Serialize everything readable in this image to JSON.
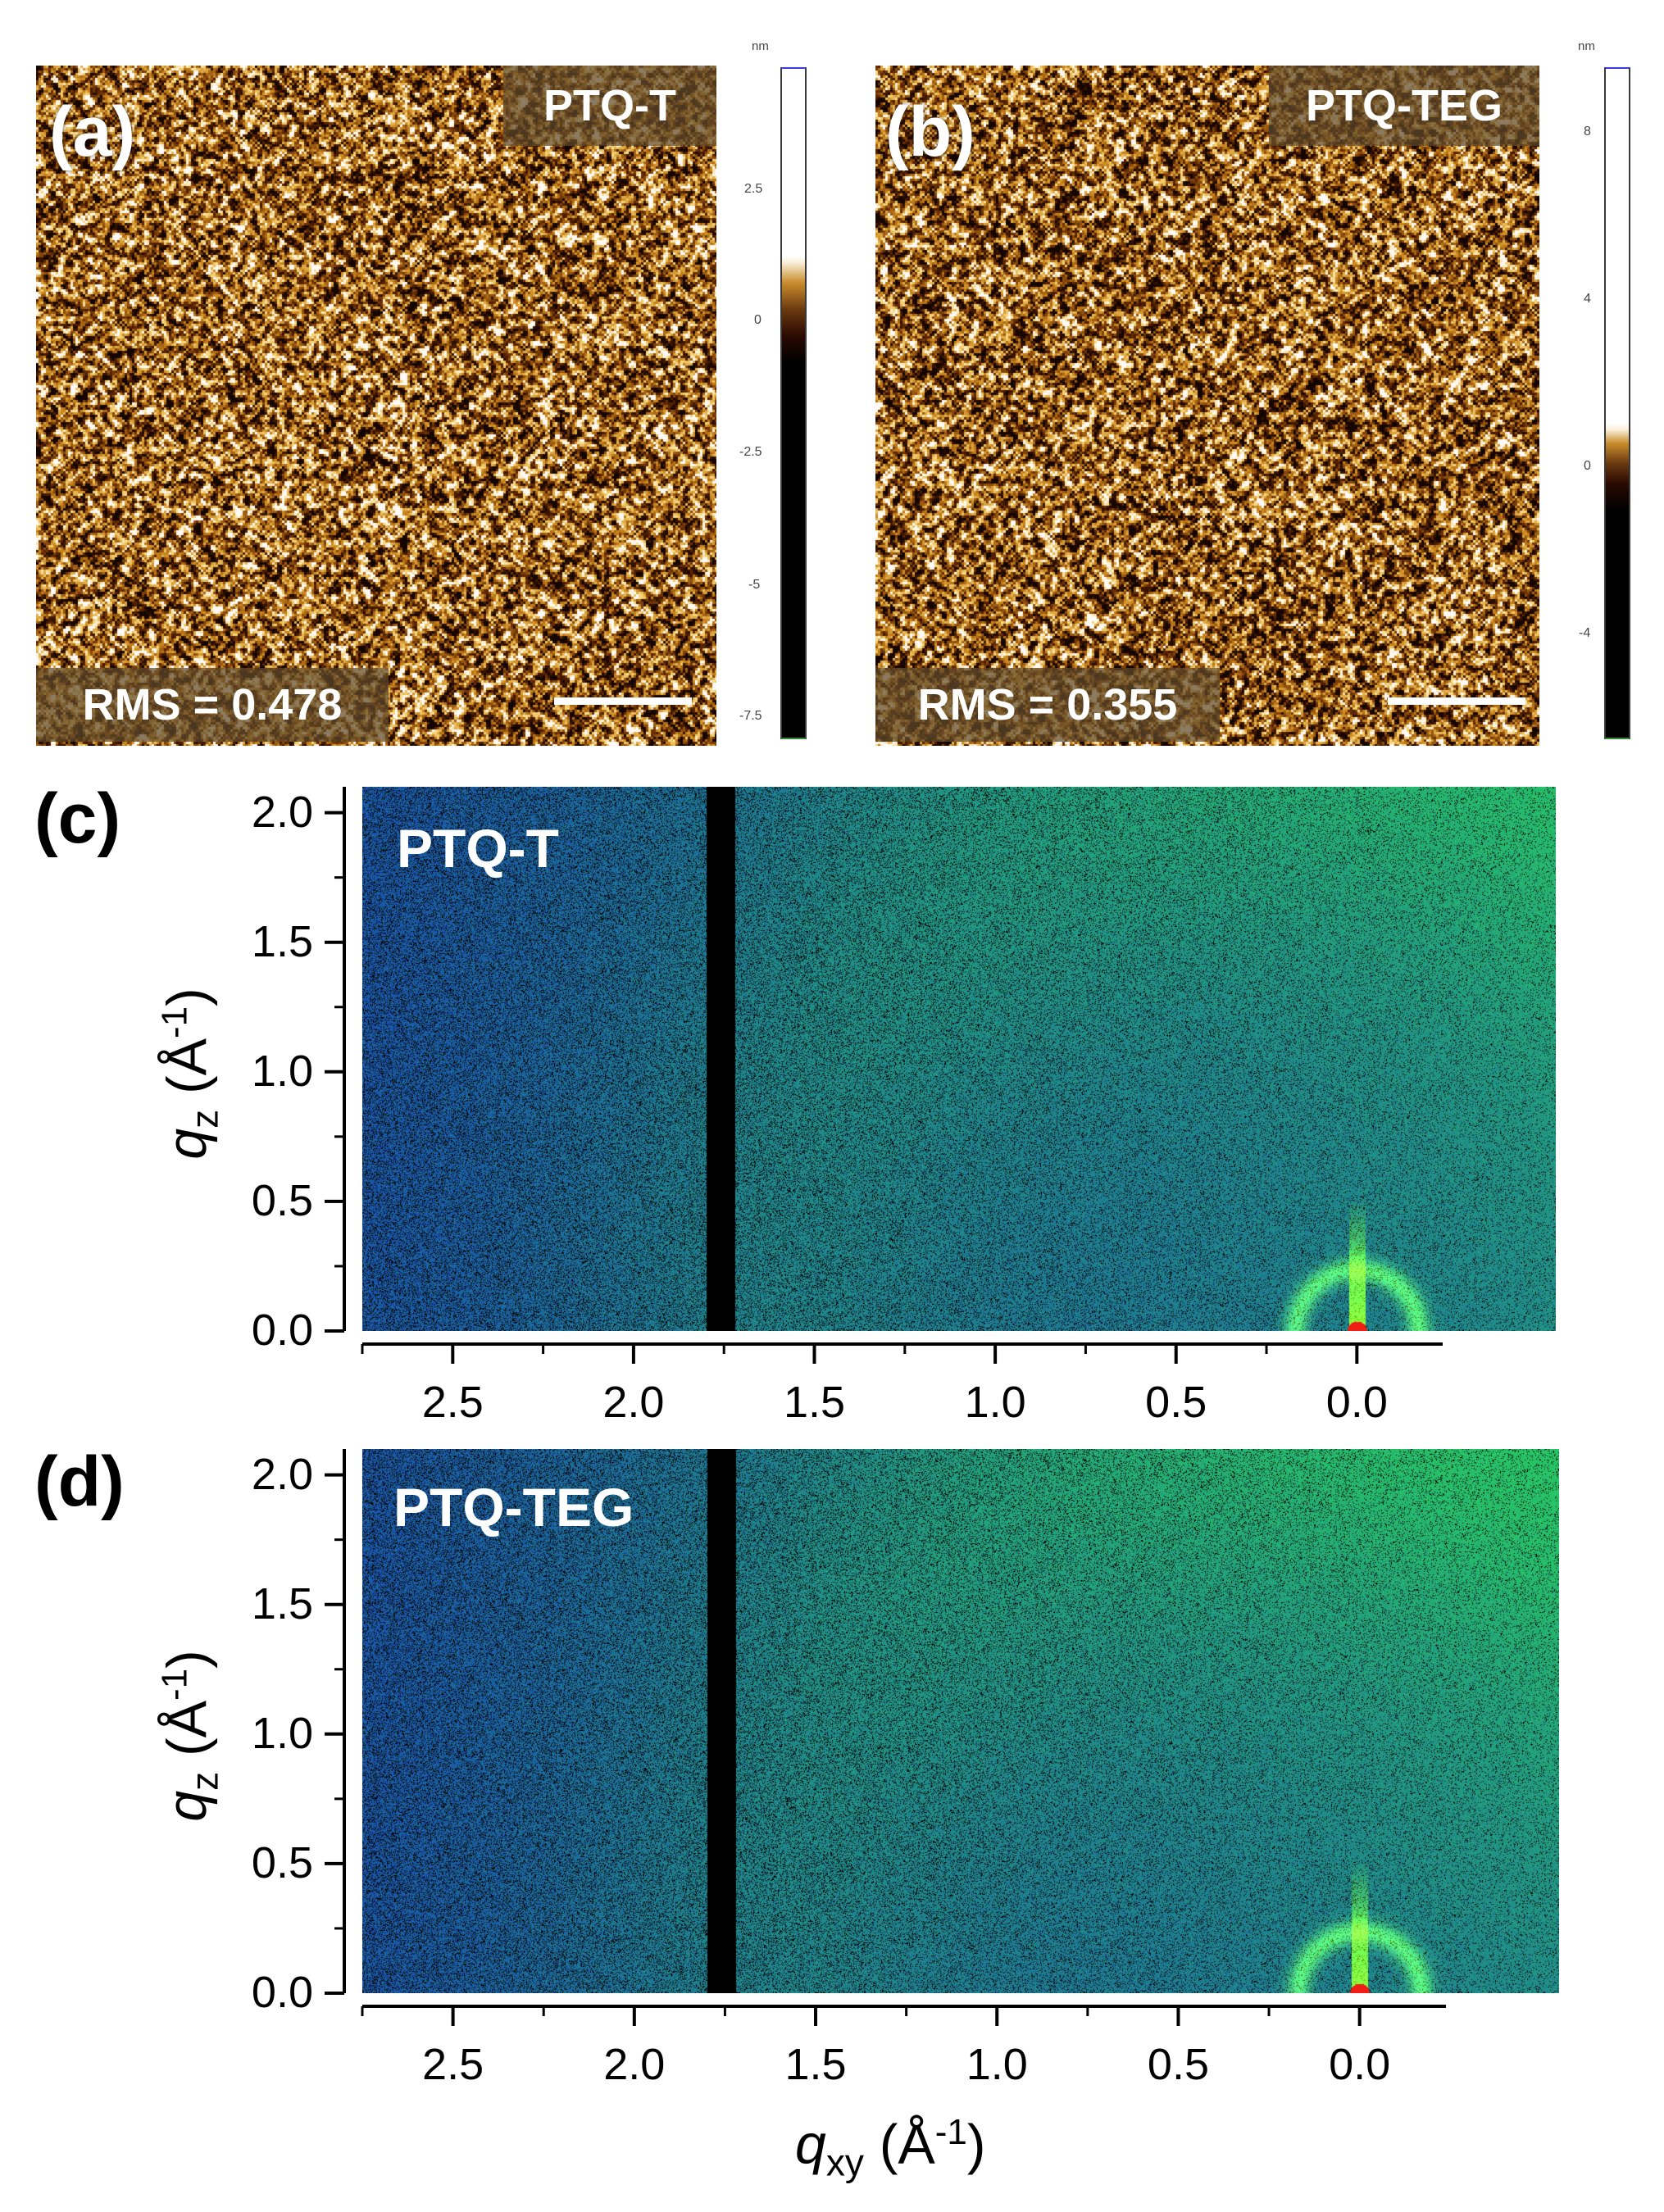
{
  "afm": [
    {
      "panel": "(a)",
      "sample": "PTQ-T",
      "rms": "RMS = 0.478",
      "colorbar": {
        "unit": "nm",
        "ticks": [
          "2.5",
          "0",
          "-2.5",
          "-5",
          "-7.5"
        ]
      }
    },
    {
      "panel": "(b)",
      "sample": "PTQ-TEG",
      "rms": "RMS = 0.355",
      "colorbar": {
        "unit": "nm",
        "ticks": [
          "8",
          "4",
          "0",
          "-4"
        ]
      }
    }
  ],
  "giwaxs": [
    {
      "panel": "(c)",
      "sample": "PTQ-T",
      "yticks": [
        "2.0",
        "1.5",
        "1.0",
        "0.5",
        "0.0"
      ],
      "xticks": [
        "2.5",
        "2.0",
        "1.5",
        "1.0",
        "0.5",
        "0.0"
      ]
    },
    {
      "panel": "(d)",
      "sample": "PTQ-TEG",
      "yticks": [
        "2.0",
        "1.5",
        "1.0",
        "0.5",
        "0.0"
      ],
      "xticks": [
        "2.5",
        "2.0",
        "1.5",
        "1.0",
        "0.5",
        "0.0"
      ]
    }
  ],
  "axes": {
    "y_var": "q",
    "y_sub": "z",
    "y_unit": "(Å",
    "y_exp": "-1",
    "y_close": ")",
    "x_var": "q",
    "x_sub": "xy",
    "x_unit": "(Å",
    "x_exp": "-1",
    "x_close": ")"
  },
  "chart_data": [
    {
      "type": "heatmap",
      "title": "PTQ-T",
      "xlabel": "q_xy (Å^-1)",
      "ylabel": "q_z (Å^-1)",
      "xlim": [
        2.75,
        -0.55
      ],
      "ylim": [
        0.0,
        2.1
      ],
      "xticks": [
        2.5,
        2.0,
        1.5,
        1.0,
        0.5,
        0.0
      ],
      "yticks": [
        0.0,
        0.5,
        1.0,
        1.5,
        2.0
      ],
      "features": [
        "detector gap near q_xy 1.75",
        "weak isotropic rings",
        "specular peak at q_xy 0.0, q_z 0.0"
      ]
    },
    {
      "type": "heatmap",
      "title": "PTQ-TEG",
      "xlabel": "q_xy (Å^-1)",
      "ylabel": "q_z (Å^-1)",
      "xlim": [
        2.75,
        -0.55
      ],
      "ylim": [
        0.0,
        2.1
      ],
      "xticks": [
        2.5,
        2.0,
        1.5,
        1.0,
        0.5,
        0.0
      ],
      "yticks": [
        0.0,
        0.5,
        1.0,
        1.5,
        2.0
      ],
      "features": [
        "detector gap near q_xy 1.75",
        "weak isotropic rings",
        "specular peak at q_xy 0.0, q_z 0.0"
      ]
    }
  ]
}
